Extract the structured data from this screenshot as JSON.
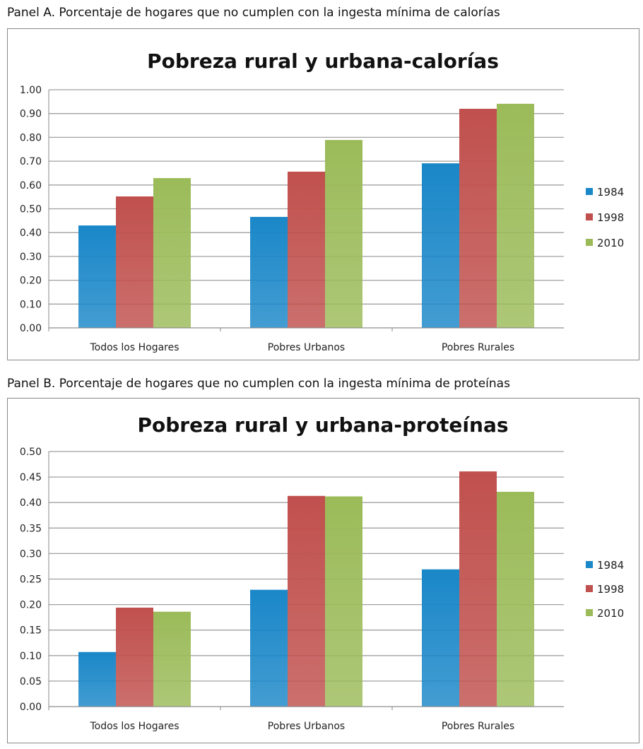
{
  "colors": {
    "1984": "#1a87c8",
    "1998": "#c0504d",
    "2010": "#9bbb59",
    "grid": "#a0a0a0"
  },
  "chart_data": [
    {
      "type": "bar",
      "caption": "Panel A. Porcentaje de hogares que no cumplen con la ingesta mínima de calorías",
      "title": "Pobreza rural y urbana-calorías",
      "categories": [
        "Todos los Hogares",
        "Pobres Urbanos",
        "Pobres Rurales"
      ],
      "series": [
        {
          "name": "1984",
          "values": [
            0.43,
            0.466,
            0.691
          ]
        },
        {
          "name": "1998",
          "values": [
            0.552,
            0.656,
            0.92
          ]
        },
        {
          "name": "2010",
          "values": [
            0.629,
            0.789,
            0.941
          ]
        }
      ],
      "ylim": [
        0,
        1.0
      ],
      "yticks": [
        "0.00",
        "0.10",
        "0.20",
        "0.30",
        "0.40",
        "0.50",
        "0.60",
        "0.70",
        "0.80",
        "0.90",
        "1.00"
      ],
      "grid": true,
      "legend": "right"
    },
    {
      "type": "bar",
      "caption": "Panel B. Porcentaje de hogares que no cumplen con la ingesta mínima de proteínas",
      "title": "Pobreza rural y urbana-proteínas",
      "categories": [
        "Todos los Hogares",
        "Pobres Urbanos",
        "Pobres Rurales"
      ],
      "series": [
        {
          "name": "1984",
          "values": [
            0.107,
            0.229,
            0.269
          ]
        },
        {
          "name": "1998",
          "values": [
            0.194,
            0.413,
            0.461
          ]
        },
        {
          "name": "2010",
          "values": [
            0.186,
            0.412,
            0.421
          ]
        }
      ],
      "ylim": [
        0,
        0.5
      ],
      "yticks": [
        "0.00",
        "0.05",
        "0.10",
        "0.15",
        "0.20",
        "0.25",
        "0.30",
        "0.35",
        "0.40",
        "0.45",
        "0.50"
      ],
      "grid": true,
      "legend": "right"
    }
  ]
}
